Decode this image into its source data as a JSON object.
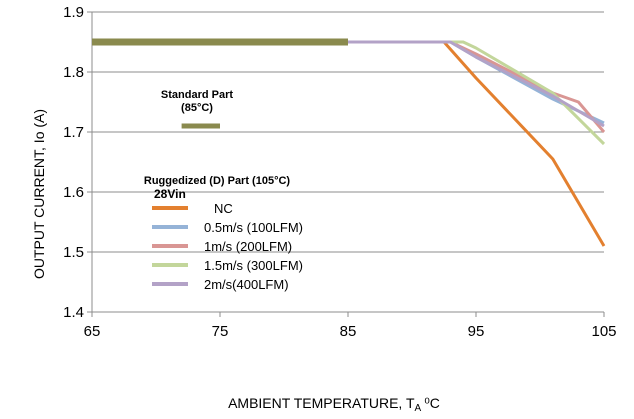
{
  "chart_data": {
    "type": "line",
    "xlabel": "AMBIENT TEMPERATURE, T",
    "xlabel_sub": "A",
    "xlabel_unit": "⁰C",
    "ylabel": "OUTPUT CURRENT, Io  (A)",
    "xlim": [
      65,
      105
    ],
    "ylim": [
      1.4,
      1.9
    ],
    "xticks": [
      65,
      75,
      85,
      95,
      105
    ],
    "yticks": [
      1.4,
      1.5,
      1.6,
      1.7,
      1.8,
      1.9
    ],
    "xtick_labels": [
      "65",
      "75",
      "85",
      "95",
      "105"
    ],
    "ytick_labels": [
      "1.4",
      "1.5",
      "1.6",
      "1.7",
      "1.8",
      "1.9"
    ],
    "grid": "horizontal-major",
    "legend_position": "inside-left",
    "annotations": {
      "standard_line1": "Standard Part",
      "standard_line2": "(85°C)",
      "ruggedized": "Ruggedized (D) Part (105°C)",
      "vin": "28Vin"
    },
    "standard_part": {
      "color": "#8a8a4e",
      "x": [
        65,
        85
      ],
      "y": [
        1.85,
        1.85
      ],
      "legend_x": [
        72,
        75
      ],
      "legend_y": [
        1.71,
        1.71
      ]
    },
    "series": [
      {
        "name": "NC",
        "color": "#e3802f",
        "x": [
          85,
          92.5,
          95,
          101,
          105
        ],
        "y": [
          1.85,
          1.85,
          1.79,
          1.655,
          1.51
        ]
      },
      {
        "name": "0.5m/s (100LFM)",
        "color": "#95b3d7",
        "x": [
          85,
          93,
          95,
          101,
          105
        ],
        "y": [
          1.85,
          1.85,
          1.825,
          1.755,
          1.715
        ]
      },
      {
        "name": "1m/s (200LFM)",
        "color": "#d99694",
        "x": [
          85,
          93,
          95,
          101,
          103,
          105
        ],
        "y": [
          1.85,
          1.85,
          1.83,
          1.765,
          1.75,
          1.7
        ]
      },
      {
        "name": "1.5m/s (300LFM)",
        "color": "#c3d69b",
        "x": [
          85,
          94,
          95,
          101,
          105
        ],
        "y": [
          1.85,
          1.85,
          1.84,
          1.765,
          1.68
        ]
      },
      {
        "name": "2m/s(400LFM)",
        "color": "#b3a2c7",
        "x": [
          85,
          93,
          95,
          101,
          105
        ],
        "y": [
          1.85,
          1.85,
          1.825,
          1.76,
          1.71
        ]
      }
    ]
  }
}
